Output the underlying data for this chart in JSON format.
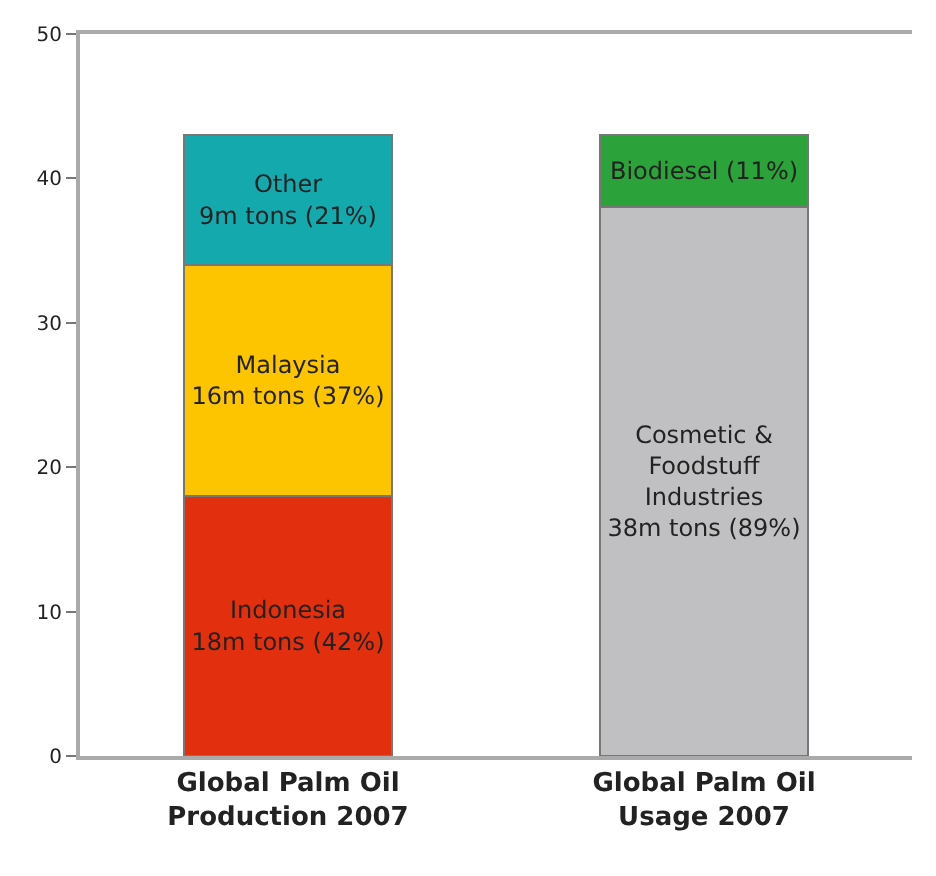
{
  "chart_data": {
    "type": "bar",
    "stacked": true,
    "categories": [
      "Global Palm Oil\nProduction 2007",
      "Global Palm Oil\nUsage 2007"
    ],
    "series": [
      {
        "name": "Indonesia\n18m tons (42%)",
        "color": "#e2300f",
        "values": [
          18,
          null
        ]
      },
      {
        "name": "Cosmetic &\nFoodstuff\nIndustries\n38m tons (89%)",
        "color": "#c0c0c2",
        "values": [
          null,
          38
        ]
      },
      {
        "name": "Malaysia\n16m tons (37%)",
        "color": "#fcc500",
        "values": [
          16,
          null
        ]
      },
      {
        "name": "Biodiesel (11%)",
        "color": "#2ca33a",
        "values": [
          null,
          5
        ]
      },
      {
        "name": "Other\n9m tons (21%)",
        "color": "#14a9ad",
        "values": [
          9,
          null
        ]
      }
    ],
    "ylim": [
      0,
      50
    ],
    "yticks": [
      0,
      10,
      20,
      30,
      40,
      50
    ],
    "legend": false
  }
}
